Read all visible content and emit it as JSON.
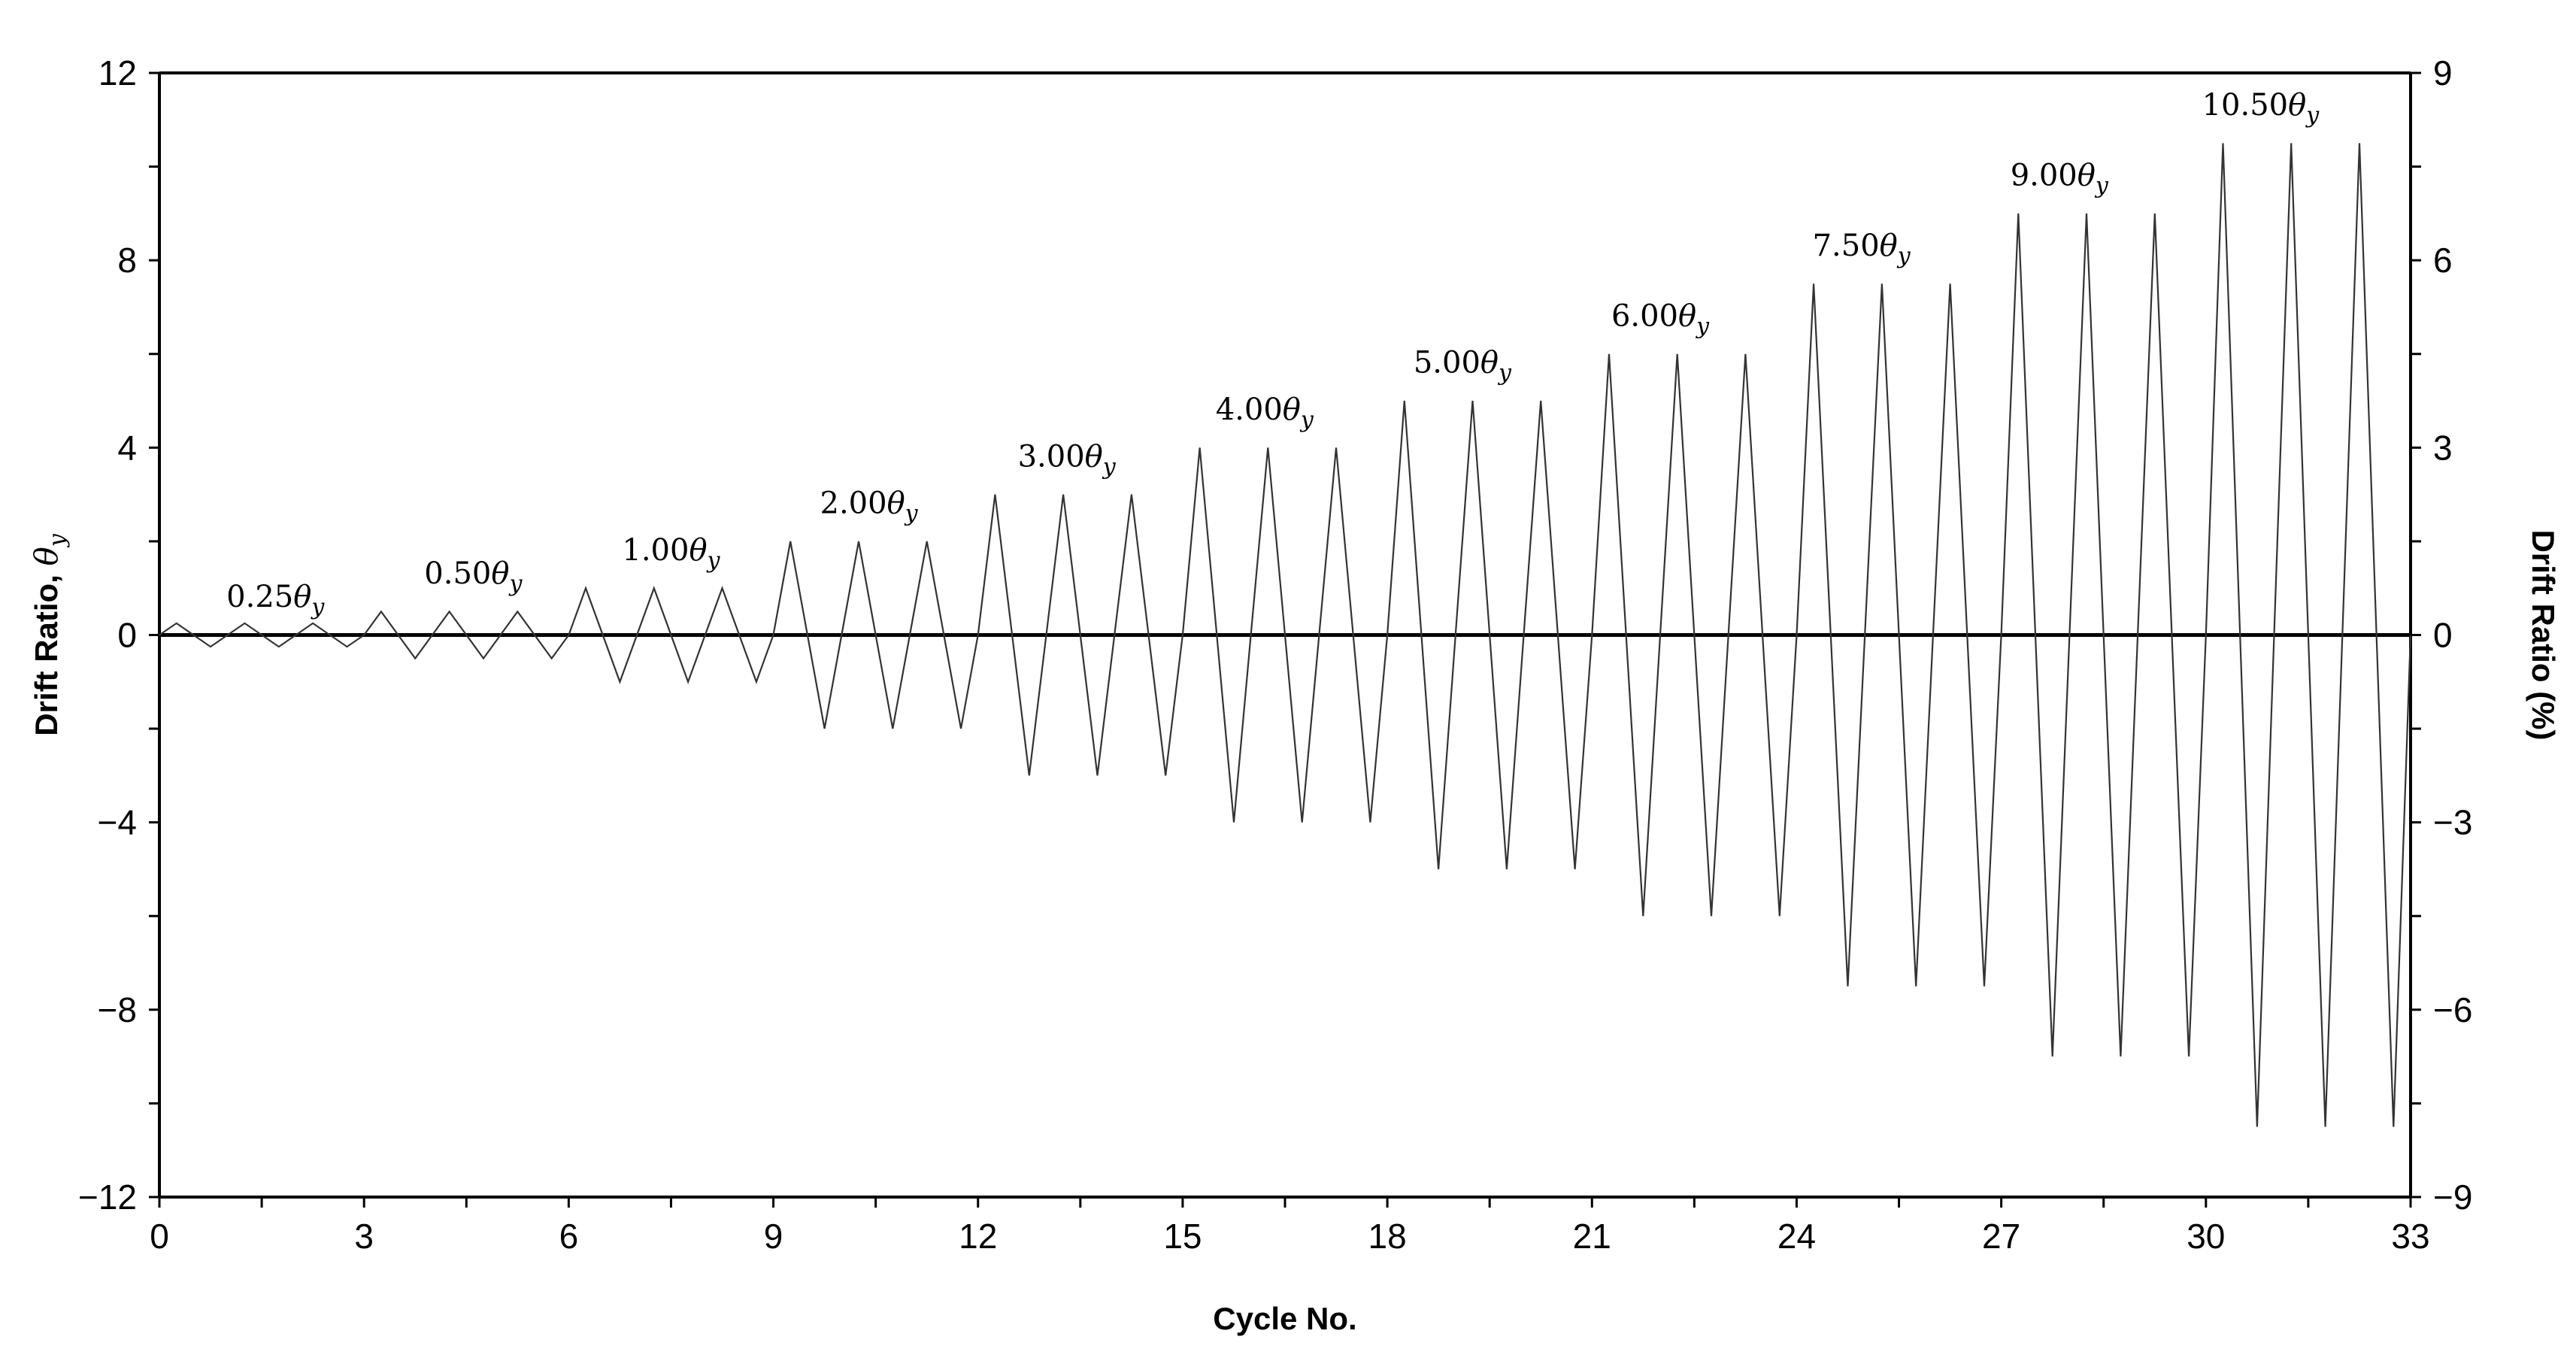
{
  "chart_data": {
    "type": "line",
    "xlabel": "Cycle No.",
    "ylabel_left": "Drift Ratio, ",
    "ylabel_left_symbol": "θ",
    "ylabel_left_sub": "y",
    "ylabel_right": "Drift Ratio (%)",
    "xlim": [
      0,
      33
    ],
    "ylim_left": [
      -12,
      12
    ],
    "ylim_right": [
      -9,
      9
    ],
    "x_ticks": [
      "0",
      "3",
      "6",
      "9",
      "12",
      "15",
      "18",
      "21",
      "24",
      "27",
      "30",
      "33"
    ],
    "y_ticks_left": [
      "12",
      "8",
      "4",
      "0",
      "−4",
      "−8",
      "−12"
    ],
    "y_ticks_right": [
      "9",
      "6",
      "3",
      "0",
      "−3",
      "−6",
      "−9"
    ],
    "grid": false,
    "zero_line": true,
    "series": [
      {
        "amplitudes": [
          0.25,
          0.25,
          0.25,
          0.5,
          0.5,
          0.5,
          1.0,
          1.0,
          1.0,
          2.0,
          2.0,
          2.0,
          3.0,
          3.0,
          3.0,
          4.0,
          4.0,
          4.0,
          5.0,
          5.0,
          5.0,
          6.0,
          6.0,
          6.0,
          7.5,
          7.5,
          7.5,
          9.0,
          9.0,
          9.0,
          10.5,
          10.5,
          10.5
        ],
        "cycle_shape": "triangular: 0 at cycle start, +amplitude at quarter, -amplitude at three-quarters, 0 at cycle end"
      }
    ],
    "annotations": [
      {
        "value": "0.25",
        "symbol": "θ",
        "sub": "y",
        "x": 1.7,
        "y": 0.6
      },
      {
        "value": "0.50",
        "symbol": "θ",
        "sub": "y",
        "x": 4.6,
        "y": 1.1
      },
      {
        "value": "1.00",
        "symbol": "θ",
        "sub": "y",
        "x": 7.5,
        "y": 1.6
      },
      {
        "value": "2.00",
        "symbol": "θ",
        "sub": "y",
        "x": 10.4,
        "y": 2.6
      },
      {
        "value": "3.00",
        "symbol": "θ",
        "sub": "y",
        "x": 13.3,
        "y": 3.6
      },
      {
        "value": "4.00",
        "symbol": "θ",
        "sub": "y",
        "x": 16.2,
        "y": 4.6
      },
      {
        "value": "5.00",
        "symbol": "θ",
        "sub": "y",
        "x": 19.1,
        "y": 5.6
      },
      {
        "value": "6.00",
        "symbol": "θ",
        "sub": "y",
        "x": 22.0,
        "y": 6.6
      },
      {
        "value": "7.50",
        "symbol": "θ",
        "sub": "y",
        "x": 24.95,
        "y": 8.1
      },
      {
        "value": "9.00",
        "symbol": "θ",
        "sub": "y",
        "x": 27.85,
        "y": 9.6
      },
      {
        "value": "10.50",
        "symbol": "θ",
        "sub": "y",
        "x": 30.8,
        "y": 11.1
      }
    ]
  }
}
